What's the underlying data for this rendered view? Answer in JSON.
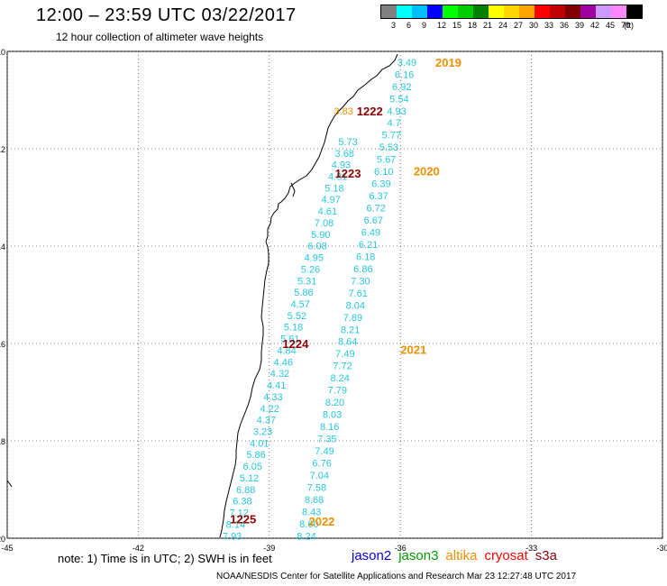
{
  "header": {
    "title": "12:00 – 23:59 UTC 03/22/2017",
    "subtitle": "12 hour collection of altimeter wave heights"
  },
  "legend": {
    "unit": "(ft)",
    "bins": [
      {
        "color": "#808080",
        "label": "3"
      },
      {
        "color": "#00ffff",
        "label": "6"
      },
      {
        "color": "#00bfff",
        "label": "9"
      },
      {
        "color": "#0000ff",
        "label": "12"
      },
      {
        "color": "#00ff00",
        "label": "15"
      },
      {
        "color": "#00cc00",
        "label": "18"
      },
      {
        "color": "#008000",
        "label": "21"
      },
      {
        "color": "#ffff00",
        "label": "24"
      },
      {
        "color": "#ffd700",
        "label": "27"
      },
      {
        "color": "#ffa500",
        "label": "30"
      },
      {
        "color": "#ff0000",
        "label": "33"
      },
      {
        "color": "#c00000",
        "label": "36"
      },
      {
        "color": "#800000",
        "label": "39"
      },
      {
        "color": "#a000a0",
        "label": "42"
      },
      {
        "color": "#cc99ff",
        "label": "45"
      },
      {
        "color": "#ff88ff",
        "label": "70"
      },
      {
        "color": "#000000",
        "label": ""
      }
    ]
  },
  "map": {
    "lat_labels": [
      "-10",
      "-12",
      "-14",
      "-16",
      "-18",
      "-20"
    ],
    "lon_labels": [
      "-45",
      "-42",
      "-39",
      "-36",
      "-33",
      "-30"
    ],
    "colors": {
      "wave_text": "#27c7df",
      "track_label": "#ee9000",
      "time_label": "#8b0000"
    },
    "track_labels": [
      {
        "text": "2019",
        "lon": -34.9,
        "lat": -10.22
      },
      {
        "text": "2020",
        "lon": -35.4,
        "lat": -12.45
      },
      {
        "text": "2021",
        "lon": -35.7,
        "lat": -16.12
      },
      {
        "text": "2022",
        "lon": -37.8,
        "lat": -19.65
      }
    ],
    "time_labels": [
      {
        "text": "1222",
        "lon": -36.7,
        "lat": -11.22
      },
      {
        "text": "1223",
        "lon": -37.2,
        "lat": -12.5
      },
      {
        "text": "1224",
        "lon": -38.4,
        "lat": -16.0
      },
      {
        "text": "1225",
        "lon": -39.6,
        "lat": -19.6
      }
    ],
    "tracks": [
      {
        "name": "east",
        "start": {
          "lon": -35.85,
          "lat": -10.22
        },
        "end": {
          "lon": -38.15,
          "lat": -19.95
        },
        "values": [
          "3.49",
          "6.16",
          "6.92",
          "5.54",
          "4.93",
          "4.7",
          "5.77",
          "5.53",
          "5.67",
          "6.10",
          "6.39",
          "6.37",
          "6.72",
          "6.67",
          "6.49",
          "6.21",
          "6.18",
          "6.86",
          "7.30",
          "7.61",
          "8.04",
          "7.89",
          "8.21",
          "8.64",
          "7.49",
          "7.72",
          "8.24",
          "7.79",
          "8.20",
          "8.03",
          "8.16",
          "7.35",
          "7.49",
          "6.76",
          "7.04",
          "7.58",
          "8.68",
          "8.43",
          "8.60",
          "8.24"
        ]
      },
      {
        "name": "west",
        "start": {
          "lon": -37.2,
          "lat": -11.85
        },
        "end": {
          "lon": -39.85,
          "lat": -19.95
        },
        "values": [
          "5.73",
          "3.68",
          "4.93",
          "4.81",
          "5.18",
          "4.97",
          "4.61",
          "7.08",
          "5.90",
          "6.08",
          "4.95",
          "5.26",
          "5.31",
          "5.86",
          "4.57",
          "5.52",
          "5.18",
          "5.61",
          "4.84",
          "4.46",
          "4.32",
          "4.41",
          "4.33",
          "4.22",
          "4.37",
          "3.23",
          "4.01",
          "5.86",
          "6.05",
          "5.12",
          "6.88",
          "6.38",
          "7.12",
          "8.14",
          "7.93"
        ]
      }
    ],
    "stray_values": [
      {
        "text": "3.83",
        "lon": -37.3,
        "lat": -11.22
      }
    ]
  },
  "footer": {
    "note": "note: 1) Time is in UTC; 2) SWH is in feet",
    "satellites": [
      {
        "name": "jason2",
        "color": "#0000dd"
      },
      {
        "name": "jason3",
        "color": "#009900"
      },
      {
        "name": "altika",
        "color": "#ee9000"
      },
      {
        "name": "cryosat",
        "color": "#ff0000"
      },
      {
        "name": "s3a",
        "color": "#8b0000"
      }
    ],
    "credit": "NOAA/NESDIS Center for Satellite Applications and Research     Mar 23 12:27:48 UTC 2017"
  }
}
